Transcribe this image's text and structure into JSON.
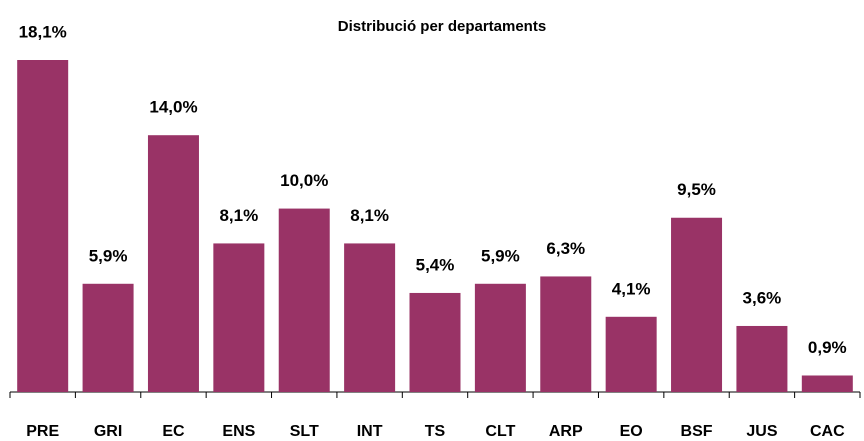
{
  "chart_data": {
    "type": "bar",
    "title": "Distribució per departaments",
    "categories": [
      "PRE",
      "GRI",
      "EC",
      "ENS",
      "SLT",
      "INT",
      "TS",
      "CLT",
      "ARP",
      "EO",
      "BSF",
      "JUS",
      "CAC"
    ],
    "values": [
      18.1,
      5.9,
      14.0,
      8.1,
      10.0,
      8.1,
      5.4,
      5.9,
      6.3,
      4.1,
      9.5,
      3.6,
      0.9
    ],
    "value_labels": [
      "18,1%",
      "5,9%",
      "14,0%",
      "8,1%",
      "10,0%",
      "8,1%",
      "5,4%",
      "5,9%",
      "6,3%",
      "4,1%",
      "9,5%",
      "3,6%",
      "0,9%"
    ],
    "color": "#993366"
  }
}
